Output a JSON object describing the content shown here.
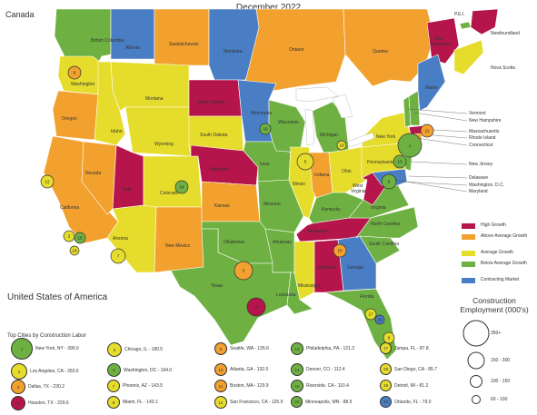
{
  "title": "December 2022",
  "canada_label": "Canada",
  "us_label": "United States of America",
  "colors": {
    "high_growth": "#b5154b",
    "above_average": "#f2a12e",
    "average": "#e6dc2b",
    "below_average": "#6eb142",
    "contracting": "#4a7ec4",
    "great_lakes": "#ffffff",
    "neutral": "#d9d9d9"
  },
  "canada_regions": [
    {
      "name": "British Columbia",
      "growth": "below_average"
    },
    {
      "name": "Alberta",
      "growth": "contracting"
    },
    {
      "name": "Saskatchewan",
      "growth": "above_average"
    },
    {
      "name": "Manitoba",
      "growth": "contracting"
    },
    {
      "name": "Ontario",
      "growth": "above_average"
    },
    {
      "name": "Quebec",
      "growth": "above_average"
    },
    {
      "name": "New Brunswick",
      "growth": "high_growth"
    },
    {
      "name": "P.E.I.",
      "growth": "below_average"
    },
    {
      "name": "Newfoundland",
      "growth": "high_growth"
    },
    {
      "name": "Nova Scotia",
      "growth": "average"
    }
  ],
  "states": [
    {
      "name": "Washington",
      "growth": "average"
    },
    {
      "name": "Oregon",
      "growth": "above_average"
    },
    {
      "name": "California",
      "growth": "above_average"
    },
    {
      "name": "Nevada",
      "growth": "above_average"
    },
    {
      "name": "Idaho",
      "growth": "average"
    },
    {
      "name": "Montana",
      "growth": "average"
    },
    {
      "name": "Wyoming",
      "growth": "average"
    },
    {
      "name": "Utah",
      "growth": "high_growth"
    },
    {
      "name": "Arizona",
      "growth": "average"
    },
    {
      "name": "Colorado",
      "growth": "average"
    },
    {
      "name": "New Mexico",
      "growth": "above_average"
    },
    {
      "name": "North Dakota",
      "growth": "high_growth"
    },
    {
      "name": "South Dakota",
      "growth": "average"
    },
    {
      "name": "Nebraska",
      "growth": "high_growth"
    },
    {
      "name": "Kansas",
      "growth": "above_average"
    },
    {
      "name": "Oklahoma",
      "growth": "below_average"
    },
    {
      "name": "Texas",
      "growth": "below_average"
    },
    {
      "name": "Minnesota",
      "growth": "contracting"
    },
    {
      "name": "Iowa",
      "growth": "below_average"
    },
    {
      "name": "Missouri",
      "growth": "below_average"
    },
    {
      "name": "Arkansas",
      "growth": "below_average"
    },
    {
      "name": "Louisiana",
      "growth": "below_average"
    },
    {
      "name": "Wisconsin",
      "growth": "below_average"
    },
    {
      "name": "Illinois",
      "growth": "average"
    },
    {
      "name": "Michigan",
      "growth": "below_average"
    },
    {
      "name": "Indiana",
      "growth": "above_average"
    },
    {
      "name": "Ohio",
      "growth": "average"
    },
    {
      "name": "Kentucky",
      "growth": "below_average"
    },
    {
      "name": "Tennessee",
      "growth": "high_growth"
    },
    {
      "name": "Mississippi",
      "growth": "average"
    },
    {
      "name": "Alabama",
      "growth": "high_growth"
    },
    {
      "name": "Georgia",
      "growth": "contracting"
    },
    {
      "name": "Florida",
      "growth": "below_average"
    },
    {
      "name": "South Carolina",
      "growth": "below_average"
    },
    {
      "name": "North Carolina",
      "growth": "below_average"
    },
    {
      "name": "Virginia",
      "growth": "below_average"
    },
    {
      "name": "West Virginia",
      "growth": "high_growth"
    },
    {
      "name": "Pennsylvania",
      "growth": "average"
    },
    {
      "name": "New York",
      "growth": "average"
    },
    {
      "name": "Vermont",
      "growth": "below_average"
    },
    {
      "name": "New Hampshire",
      "growth": "below_average"
    },
    {
      "name": "Maine",
      "growth": "contracting"
    },
    {
      "name": "Massachusetts",
      "growth": "high_growth"
    },
    {
      "name": "Connecticut",
      "growth": "above_average"
    },
    {
      "name": "New Jersey",
      "growth": "below_average"
    },
    {
      "name": "Maryland",
      "growth": "contracting"
    }
  ],
  "leader_labels": [
    "Vermont",
    "New Hampshire",
    "Massachusetts",
    "Rhode Island",
    "Connecticut",
    "New Jersey",
    "Delaware",
    "Washington, D.C.",
    "Maryland"
  ],
  "legend": {
    "items": [
      {
        "label": "High Growth",
        "key": "high_growth"
      },
      {
        "label": "Above Average Growth",
        "key": "above_average"
      },
      {
        "label": "Average Growth",
        "key": "average"
      },
      {
        "label": "Below Average Growth",
        "key": "below_average"
      },
      {
        "label": "Contracting Market",
        "key": "contracting"
      }
    ]
  },
  "employment_legend": {
    "title": "Construction Employment (000's)",
    "sizes": [
      "350+",
      "150 - 300",
      "100 - 150",
      "60 - 100"
    ]
  },
  "cities_title": "Top Cities by Construction Labor",
  "cities": [
    {
      "rank": "1",
      "label": "New York, NY - 390.0",
      "growth": "below_average"
    },
    {
      "rank": "2",
      "label": "Los Angeles, CA - 260.6",
      "growth": "average"
    },
    {
      "rank": "3",
      "label": "Dallas, TX - 230.2",
      "growth": "above_average"
    },
    {
      "rank": "4",
      "label": "Houston, TX - 229.6",
      "growth": "high_growth"
    },
    {
      "rank": "5",
      "label": "Chicago, IL - 180.5",
      "growth": "average"
    },
    {
      "rank": "6",
      "label": "Washington, DC - 164.0",
      "growth": "below_average"
    },
    {
      "rank": "7",
      "label": "Phoenix, AZ - 143.5",
      "growth": "average"
    },
    {
      "rank": "8",
      "label": "Miami, FL - 143.1",
      "growth": "average"
    },
    {
      "rank": "9",
      "label": "Seattle, WA - 135.6",
      "growth": "above_average"
    },
    {
      "rank": "10",
      "label": "Atlanta, GA - 132.0",
      "growth": "above_average"
    },
    {
      "rank": "11",
      "label": "Boston, MA - 129.9",
      "growth": "above_average"
    },
    {
      "rank": "12",
      "label": "San Francisco, CA - 125.9",
      "growth": "average"
    },
    {
      "rank": "13",
      "label": "Philadelphia, PA - 121.2",
      "growth": "below_average"
    },
    {
      "rank": "14",
      "label": "Denver, CO - 112.4",
      "growth": "below_average"
    },
    {
      "rank": "15",
      "label": "Riverside, CA - 110.4",
      "growth": "below_average"
    },
    {
      "rank": "16",
      "label": "Minneapolis, MN - 88.5",
      "growth": "below_average"
    },
    {
      "rank": "17",
      "label": "Tampa, FL - 87.8",
      "growth": "average"
    },
    {
      "rank": "18",
      "label": "San Diego, CA - 85.7",
      "growth": "average"
    },
    {
      "rank": "19",
      "label": "Detroit, MI - 81.2",
      "growth": "average"
    },
    {
      "rank": "20",
      "label": "Orlando, FL - 79.0",
      "growth": "contracting"
    }
  ]
}
